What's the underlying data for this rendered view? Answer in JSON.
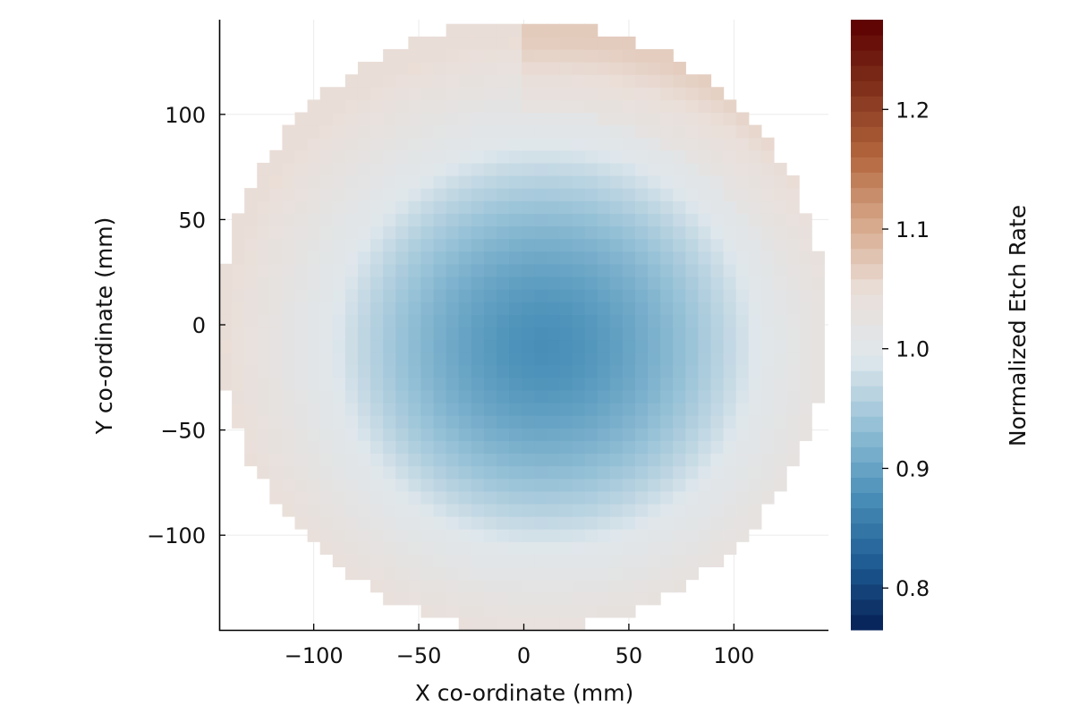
{
  "chart_data": {
    "type": "heatmap",
    "xlabel": "X co-ordinate (mm)",
    "ylabel": "Y co-ordinate (mm)",
    "colorbar_label": "Normalized Etch Rate",
    "xlim": [
      -145,
      145
    ],
    "ylim": [
      -145,
      145
    ],
    "xticks": [
      -100,
      -50,
      0,
      50,
      100
    ],
    "yticks": [
      -100,
      -50,
      0,
      50,
      100
    ],
    "xtick_labels": [
      "−100",
      "−50",
      "0",
      "50",
      "100"
    ],
    "ytick_labels": [
      "−100",
      "−50",
      "0",
      "50",
      "100"
    ],
    "colorbar": {
      "range": [
        0.765,
        1.275
      ],
      "ticks": [
        0.8,
        0.9,
        1.0,
        1.1,
        1.2
      ],
      "tick_labels": [
        "0.8",
        "0.9",
        "1.0",
        "1.1",
        "1.2"
      ],
      "colormap": "diverging blue-white-red",
      "colors": [
        "#051f55",
        "#1f5c94",
        "#4b91b9",
        "#94c0d6",
        "#dfe7ec",
        "#eadfd9",
        "#d7a88a",
        "#b3663d",
        "#80301b",
        "#5c0000"
      ]
    },
    "grid": true,
    "wafer_radius_mm": 145,
    "cell_size_mm": 6,
    "field_model": {
      "description": "Etch rate field sampled on 6 mm grid over a circular wafer",
      "center_mm": [
        10,
        -10
      ],
      "min_value": 0.875,
      "mid_value": 1.0,
      "edge_value": 1.05,
      "mid_radius_fraction": 0.72
    }
  }
}
